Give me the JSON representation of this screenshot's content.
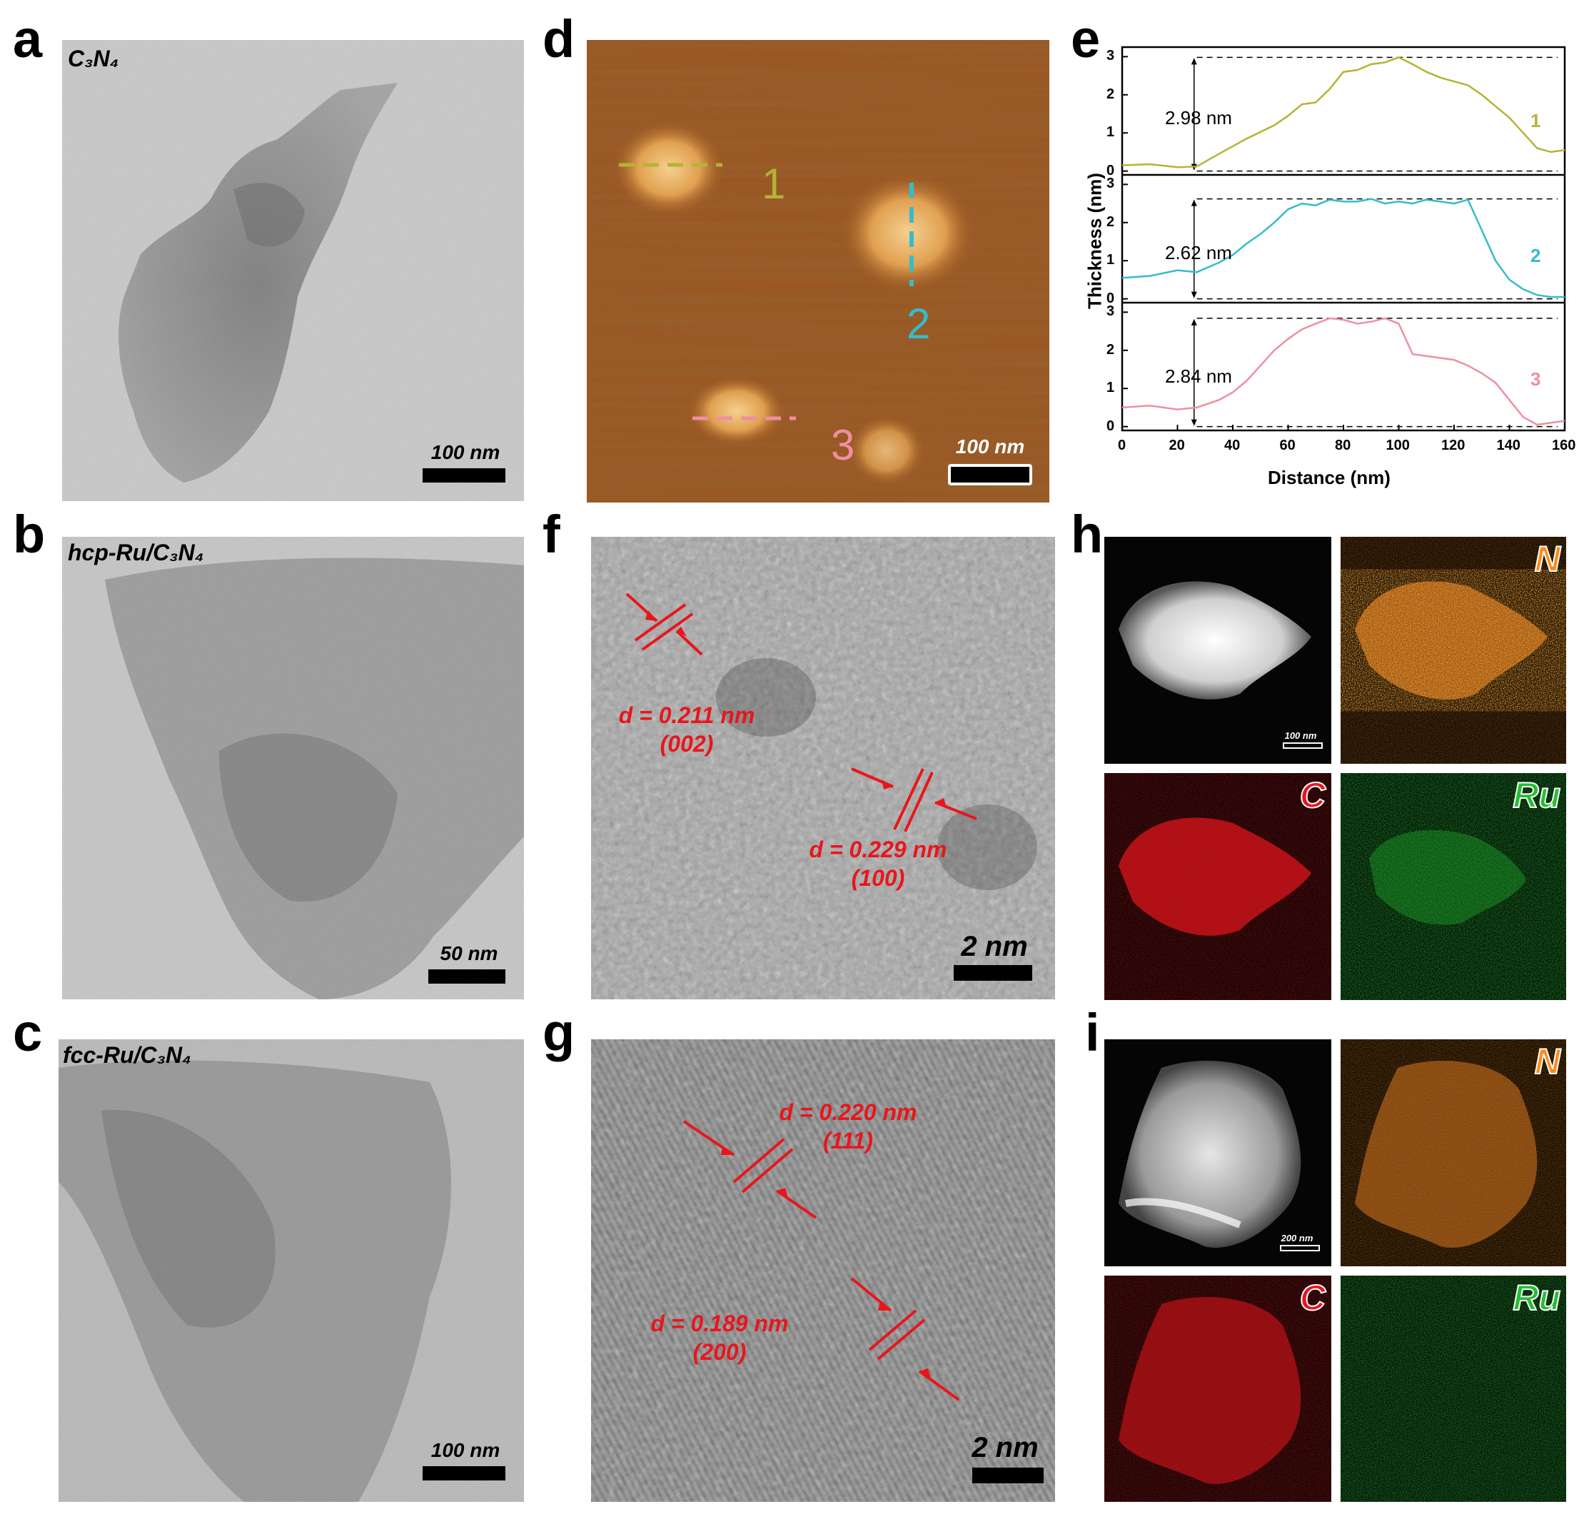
{
  "panel_labels": [
    "a",
    "b",
    "c",
    "d",
    "e",
    "f",
    "g",
    "h",
    "i"
  ],
  "panel_a": {
    "sample": "C₃N₄",
    "scale": "100 nm"
  },
  "panel_b": {
    "sample": "hcp-Ru/C₃N₄",
    "scale": "50 nm"
  },
  "panel_c": {
    "sample": "fcc-Ru/C₃N₄",
    "scale": "100 nm"
  },
  "panel_d": {
    "line_labels": [
      "1",
      "2",
      "3"
    ],
    "scale": "100 nm"
  },
  "panel_f": {
    "scale": "2 nm",
    "spacings": [
      {
        "d": "d = 0.211 nm",
        "plane": "(002)"
      },
      {
        "d": "d = 0.229 nm",
        "plane": "(100)"
      }
    ]
  },
  "panel_g": {
    "scale": "2 nm",
    "spacings": [
      {
        "d": "d = 0.220 nm",
        "plane": "(111)"
      },
      {
        "d": "d = 0.189 nm",
        "plane": "(200)"
      }
    ]
  },
  "panel_h": {
    "scale": "100 nm",
    "elements": [
      "N",
      "C",
      "Ru"
    ]
  },
  "panel_i": {
    "scale": "200 nm",
    "elements": [
      "N",
      "C",
      "Ru"
    ]
  },
  "chart_data": {
    "type": "line",
    "xlabel": "Distance (nm)",
    "ylabel": "Thickness (nm)",
    "xlim": [
      0,
      160
    ],
    "ylim": [
      0,
      3
    ],
    "x_ticks": [
      "0",
      "20",
      "40",
      "60",
      "80",
      "100",
      "120",
      "140",
      "160"
    ],
    "y_ticks": [
      "0",
      "1",
      "2",
      "3"
    ],
    "grid": false,
    "legend": "inline labels at right",
    "series": [
      {
        "name": "1",
        "color": "#b5b336",
        "height_label": "2.98 nm",
        "x": [
          0,
          10,
          20,
          27,
          35,
          45,
          55,
          60,
          65,
          70,
          75,
          80,
          85,
          90,
          95,
          100,
          105,
          110,
          115,
          120,
          125,
          130,
          135,
          140,
          145,
          150,
          155,
          160
        ],
        "y": [
          0.15,
          0.18,
          0.1,
          0.12,
          0.45,
          0.85,
          1.2,
          1.45,
          1.75,
          1.8,
          2.15,
          2.6,
          2.65,
          2.8,
          2.85,
          2.98,
          2.8,
          2.6,
          2.45,
          2.35,
          2.25,
          2.0,
          1.7,
          1.4,
          1.0,
          0.6,
          0.5,
          0.55
        ]
      },
      {
        "name": "2",
        "color": "#36bcc9",
        "height_label": "2.62 nm",
        "x": [
          0,
          10,
          20,
          27,
          35,
          40,
          45,
          50,
          55,
          60,
          65,
          70,
          75,
          80,
          85,
          90,
          95,
          100,
          105,
          110,
          115,
          120,
          125,
          130,
          135,
          140,
          145,
          150,
          155,
          160
        ],
        "y": [
          0.55,
          0.6,
          0.75,
          0.7,
          0.95,
          1.15,
          1.45,
          1.7,
          2.0,
          2.35,
          2.5,
          2.45,
          2.6,
          2.55,
          2.55,
          2.62,
          2.5,
          2.55,
          2.5,
          2.6,
          2.55,
          2.5,
          2.6,
          1.8,
          1.0,
          0.5,
          0.25,
          0.1,
          0.05,
          0.05
        ]
      },
      {
        "name": "3",
        "color": "#ef8fa0",
        "height_label": "2.84 nm",
        "x": [
          0,
          10,
          20,
          27,
          35,
          40,
          45,
          50,
          55,
          60,
          65,
          70,
          75,
          80,
          85,
          90,
          95,
          100,
          105,
          110,
          115,
          120,
          125,
          130,
          135,
          140,
          145,
          150,
          155,
          160
        ],
        "y": [
          0.5,
          0.55,
          0.45,
          0.5,
          0.7,
          0.9,
          1.2,
          1.6,
          2.0,
          2.3,
          2.55,
          2.7,
          2.84,
          2.8,
          2.7,
          2.75,
          2.84,
          2.7,
          1.9,
          1.85,
          1.8,
          1.75,
          1.6,
          1.4,
          1.15,
          0.7,
          0.25,
          0.05,
          0.1,
          0.15
        ]
      }
    ]
  }
}
